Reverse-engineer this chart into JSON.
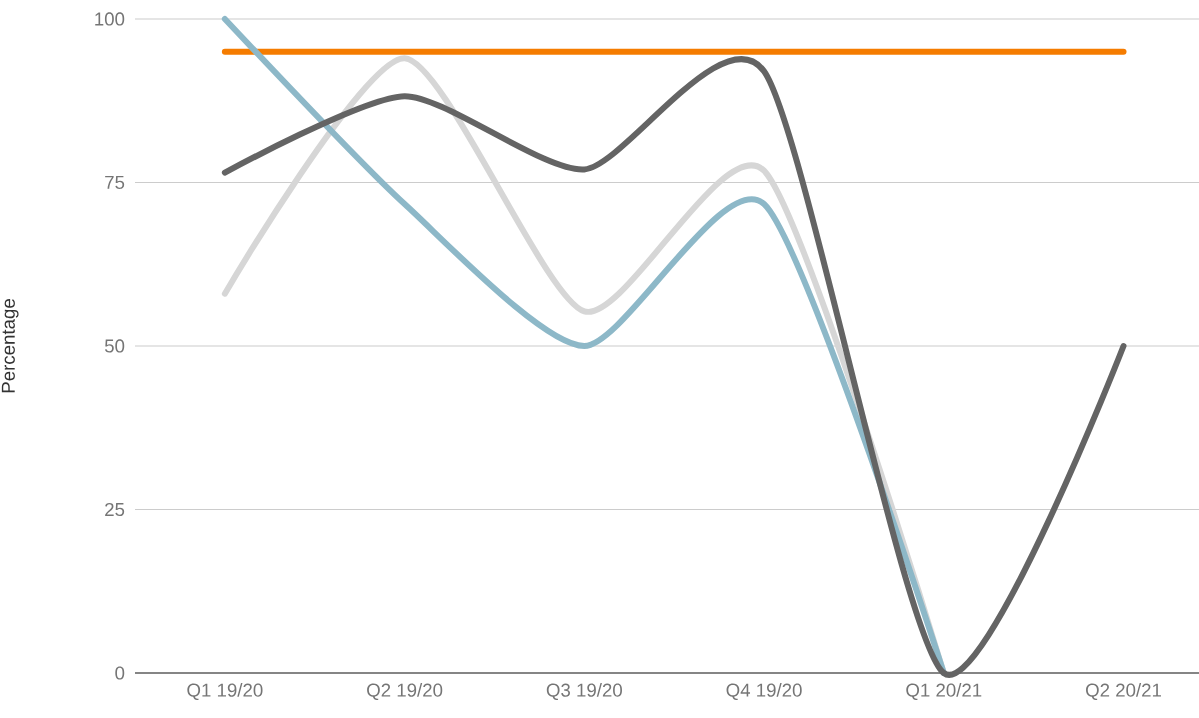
{
  "chart_data": {
    "type": "line",
    "ylabel": "Percentage",
    "categories": [
      "Q1 19/20",
      "Q2 19/20",
      "Q3 19/20",
      "Q4 19/20",
      "Q1 20/21",
      "Q2 20/21"
    ],
    "ylim": [
      0,
      100
    ],
    "yticks": [
      0,
      25,
      50,
      75,
      100
    ],
    "grid": "y",
    "series": [
      {
        "color": "#f57c00",
        "values": [
          95,
          95,
          95,
          95,
          95,
          95
        ]
      },
      {
        "color": "#d6d6d6",
        "values": [
          58,
          94,
          55.3,
          76.8,
          0,
          null
        ]
      },
      {
        "color": "#8db8c8",
        "values": [
          100,
          71.7,
          50,
          71.7,
          0,
          null
        ]
      },
      {
        "color": "#646464",
        "values": [
          76.5,
          88.2,
          77,
          92,
          0,
          50
        ]
      }
    ]
  }
}
